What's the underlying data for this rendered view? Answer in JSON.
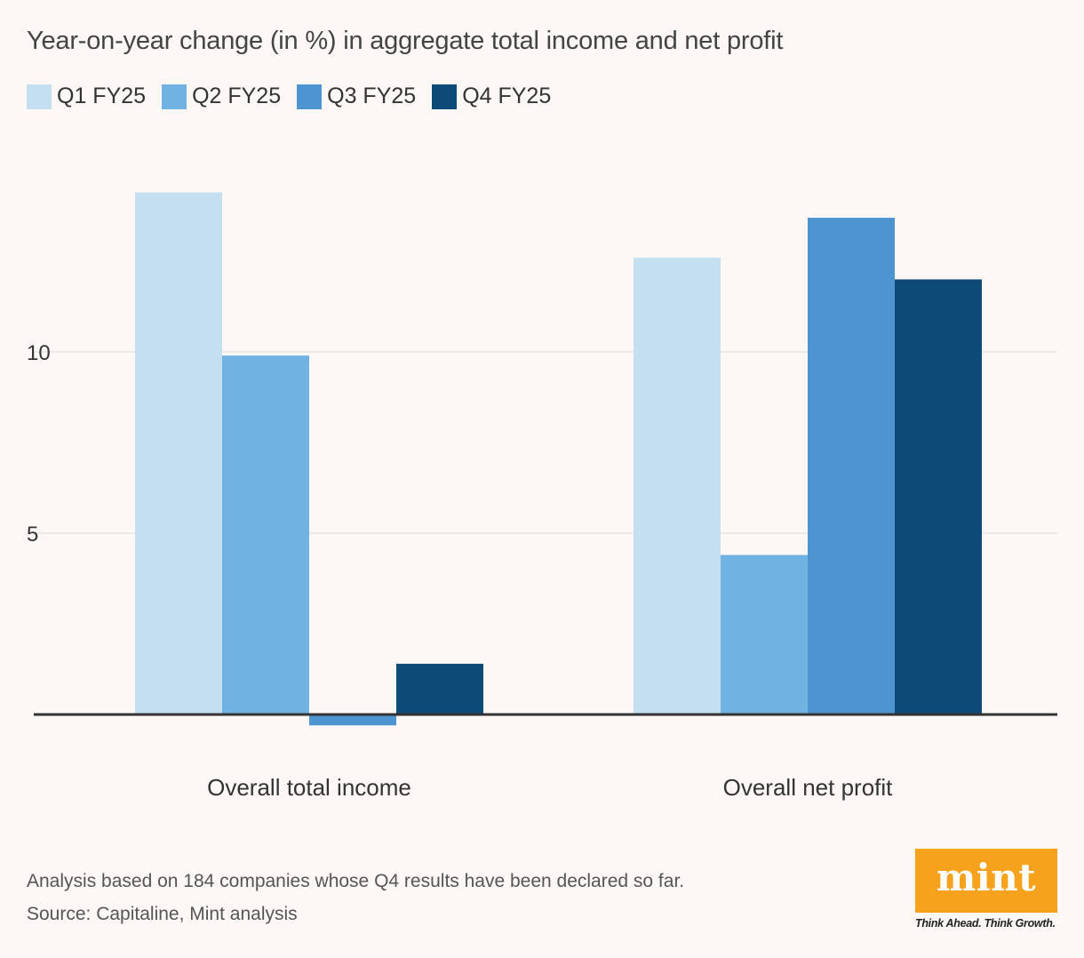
{
  "chart_data": {
    "type": "bar",
    "title": "Year-on-year change (in %) in aggregate total income and net profit",
    "categories": [
      "Overall total income",
      "Overall net profit"
    ],
    "series": [
      {
        "name": "Q1 FY25",
        "color": "#c4dff0",
        "values": [
          14.4,
          12.6
        ]
      },
      {
        "name": "Q2 FY25",
        "color": "#70b2e2",
        "values": [
          9.9,
          4.4
        ]
      },
      {
        "name": "Q3 FY25",
        "color": "#4d94d0",
        "values": [
          -0.3,
          13.7
        ]
      },
      {
        "name": "Q4 FY25",
        "color": "#0d4a78",
        "values": [
          1.4,
          12.0
        ]
      }
    ],
    "yticks": [
      5,
      10
    ],
    "ylim": [
      -1,
      16
    ],
    "grid": true,
    "xlabel": "",
    "ylabel": ""
  },
  "footnotes": {
    "note": "Analysis based on 184 companies whose Q4 results have been declared so far.",
    "source": "Source: Capitaline, Mint analysis"
  },
  "brand": {
    "logo_text": "mint",
    "tagline": "Think Ahead. Think Growth.",
    "accent": "#f6a21c"
  }
}
